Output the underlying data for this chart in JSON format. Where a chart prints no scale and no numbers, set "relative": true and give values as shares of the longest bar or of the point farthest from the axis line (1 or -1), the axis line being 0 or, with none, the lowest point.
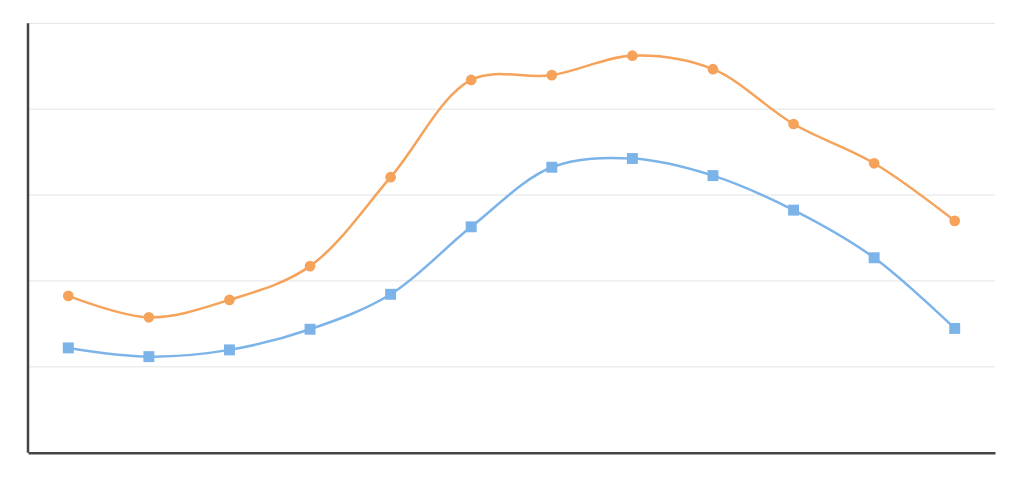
{
  "chart_data": {
    "type": "line",
    "relative": true,
    "grid": true,
    "categories": [
      null,
      null,
      null,
      null,
      null,
      null,
      null,
      null,
      null,
      null,
      null,
      null
    ],
    "series": [
      {
        "color": "#f5a35a",
        "marker": "circle",
        "values": [
          0.395,
          0.341,
          0.385,
          0.47,
          0.694,
          0.939,
          0.951,
          1,
          0.966,
          0.828,
          0.729,
          0.584
        ]
      },
      {
        "color": "#7cb4ea",
        "marker": "square",
        "values": [
          0.264,
          0.242,
          0.259,
          0.311,
          0.399,
          0.569,
          0.719,
          0.741,
          0.698,
          0.611,
          0.491,
          0.313
        ]
      }
    ]
  }
}
